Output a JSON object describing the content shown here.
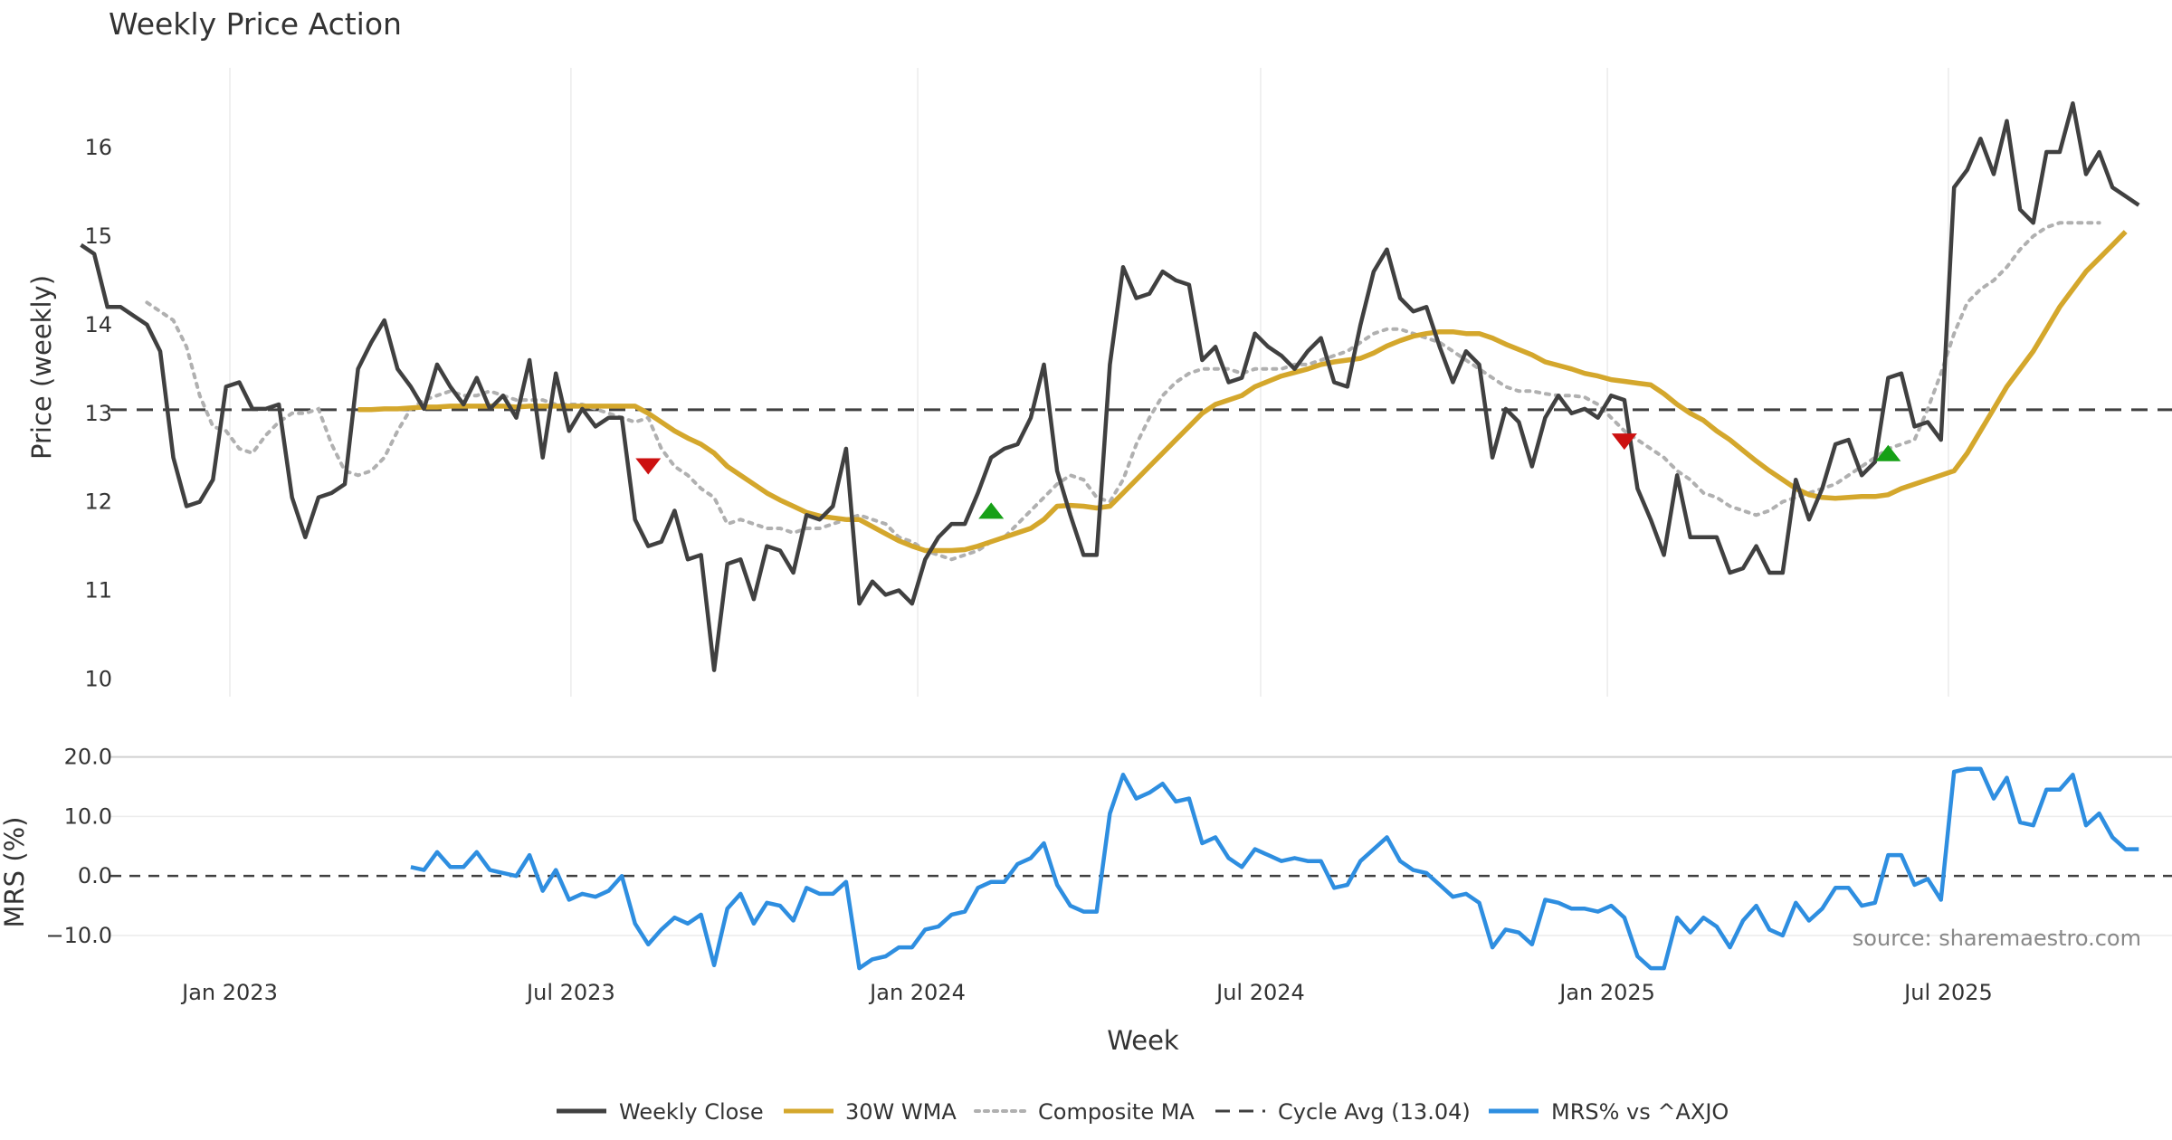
{
  "colors": {
    "close": "#404040",
    "wma": "#d4a72c",
    "composite": "#b0b0b0",
    "cycle": "#404040",
    "mrs": "#2e8ee0",
    "buy": "#16a016",
    "sell": "#cc1111",
    "grid": "#ececec"
  },
  "chart_data": [
    {
      "type": "line",
      "title": "Weekly Price Action",
      "ylabel": "Price (weekly)",
      "ylim": [
        9.8,
        16.9
      ],
      "yticks": [
        "10",
        "11",
        "12",
        "13",
        "14",
        "15",
        "16"
      ],
      "grid": "vertical",
      "x_start": "2022-10-14",
      "x_step_days": 7,
      "cycle_avg": 13.04,
      "series": [
        {
          "name": "Weekly Close",
          "style": "solid",
          "values": [
            14.9,
            14.8,
            14.2,
            14.2,
            14.1,
            14.0,
            13.7,
            12.5,
            11.95,
            12.0,
            12.25,
            13.3,
            13.35,
            13.05,
            13.05,
            13.1,
            12.05,
            11.6,
            12.05,
            12.1,
            12.2,
            13.5,
            13.8,
            14.05,
            13.5,
            13.3,
            13.05,
            13.55,
            13.3,
            13.1,
            13.4,
            13.05,
            13.2,
            12.95,
            13.6,
            12.5,
            13.45,
            12.8,
            13.05,
            12.85,
            12.95,
            12.95,
            11.8,
            11.5,
            11.55,
            11.9,
            11.35,
            11.4,
            10.1,
            11.3,
            11.35,
            10.9,
            11.5,
            11.45,
            11.2,
            11.85,
            11.8,
            11.95,
            12.6,
            10.85,
            11.1,
            10.95,
            11.0,
            10.85,
            11.35,
            11.6,
            11.75,
            11.75,
            12.1,
            12.5,
            12.6,
            12.65,
            12.95,
            13.55,
            12.35,
            11.85,
            11.4,
            11.4,
            13.55,
            14.65,
            14.3,
            14.35,
            14.6,
            14.5,
            14.45,
            13.6,
            13.75,
            13.35,
            13.4,
            13.9,
            13.75,
            13.65,
            13.5,
            13.7,
            13.85,
            13.35,
            13.3,
            14.0,
            14.6,
            14.85,
            14.3,
            14.15,
            14.2,
            13.75,
            13.35,
            13.7,
            13.55,
            12.5,
            13.05,
            12.9,
            12.4,
            12.95,
            13.2,
            13.0,
            13.05,
            12.95,
            13.2,
            13.15,
            12.15,
            11.8,
            11.4,
            12.3,
            11.6,
            11.6,
            11.6,
            11.2,
            11.25,
            11.5,
            11.2,
            11.2,
            12.25,
            11.8,
            12.15,
            12.65,
            12.7,
            12.3,
            12.45,
            13.4,
            13.45,
            12.85,
            12.9,
            12.7,
            15.55,
            15.75,
            16.1,
            15.7,
            16.3,
            15.3,
            15.15,
            15.95,
            15.95,
            16.5,
            15.7,
            15.95,
            15.55,
            15.45,
            15.35
          ]
        },
        {
          "name": "30W WMA",
          "style": "solid",
          "start_index": 21,
          "values": [
            13.04,
            13.04,
            13.05,
            13.05,
            13.06,
            13.07,
            13.07,
            13.08,
            13.08,
            13.08,
            13.08,
            13.08,
            13.07,
            13.08,
            13.08,
            13.08,
            13.08,
            13.08,
            13.08,
            13.08,
            13.08,
            13.08,
            13.0,
            12.9,
            12.8,
            12.72,
            12.65,
            12.55,
            12.4,
            12.3,
            12.2,
            12.1,
            12.02,
            11.95,
            11.88,
            11.84,
            11.82,
            11.8,
            11.8,
            11.72,
            11.64,
            11.56,
            11.5,
            11.45,
            11.45,
            11.45,
            11.46,
            11.5,
            11.55,
            11.6,
            11.65,
            11.7,
            11.8,
            11.95,
            11.96,
            11.95,
            11.93,
            11.95,
            12.1,
            12.25,
            12.4,
            12.55,
            12.7,
            12.85,
            13.0,
            13.1,
            13.15,
            13.2,
            13.3,
            13.36,
            13.42,
            13.46,
            13.5,
            13.55,
            13.58,
            13.6,
            13.62,
            13.68,
            13.76,
            13.82,
            13.87,
            13.9,
            13.92,
            13.92,
            13.9,
            13.9,
            13.85,
            13.78,
            13.72,
            13.66,
            13.58,
            13.54,
            13.5,
            13.45,
            13.42,
            13.38,
            13.36,
            13.34,
            13.32,
            13.22,
            13.1,
            13.0,
            12.92,
            12.8,
            12.7,
            12.58,
            12.46,
            12.35,
            12.25,
            12.15,
            12.08,
            12.05,
            12.04,
            12.05,
            12.06,
            12.06,
            12.08,
            12.15,
            12.2,
            12.25,
            12.3,
            12.35,
            12.55,
            12.8,
            13.05,
            13.3,
            13.5,
            13.7,
            13.95,
            14.2,
            14.4,
            14.6,
            14.75,
            14.9,
            15.05
          ]
        },
        {
          "name": "Composite MA",
          "style": "dotted",
          "start_index": 5,
          "values": [
            14.25,
            14.15,
            14.05,
            13.75,
            13.2,
            12.85,
            12.8,
            12.6,
            12.55,
            12.75,
            12.9,
            13.0,
            13.0,
            13.05,
            12.65,
            12.35,
            12.3,
            12.35,
            12.5,
            12.8,
            13.05,
            13.15,
            13.2,
            13.25,
            13.2,
            13.2,
            13.25,
            13.2,
            13.15,
            13.15,
            13.15,
            13.1,
            13.1,
            13.1,
            13.05,
            13.0,
            12.95,
            12.9,
            12.95,
            12.6,
            12.4,
            12.3,
            12.15,
            12.05,
            11.75,
            11.8,
            11.75,
            11.7,
            11.7,
            11.65,
            11.7,
            11.7,
            11.75,
            11.8,
            11.85,
            11.8,
            11.75,
            11.6,
            11.55,
            11.45,
            11.4,
            11.35,
            11.4,
            11.45,
            11.55,
            11.6,
            11.75,
            11.9,
            12.05,
            12.2,
            12.3,
            12.25,
            12.05,
            12.0,
            12.25,
            12.65,
            12.95,
            13.2,
            13.35,
            13.45,
            13.5,
            13.5,
            13.5,
            13.45,
            13.5,
            13.5,
            13.5,
            13.55,
            13.55,
            13.6,
            13.65,
            13.7,
            13.8,
            13.9,
            13.95,
            13.95,
            13.9,
            13.85,
            13.8,
            13.7,
            13.6,
            13.5,
            13.4,
            13.3,
            13.25,
            13.25,
            13.22,
            13.2,
            13.2,
            13.18,
            13.1,
            12.95,
            12.8,
            12.7,
            12.6,
            12.5,
            12.35,
            12.25,
            12.1,
            12.05,
            11.95,
            11.9,
            11.85,
            11.9,
            12.0,
            12.05,
            12.1,
            12.15,
            12.2,
            12.3,
            12.4,
            12.5,
            12.6,
            12.65,
            12.7,
            13.05,
            13.45,
            13.9,
            14.25,
            14.4,
            14.5,
            14.65,
            14.85,
            15.0,
            15.1,
            15.15,
            15.15,
            15.15,
            15.15
          ]
        },
        {
          "name": "Cycle Avg (13.04)",
          "style": "dashed",
          "value": 13.04
        }
      ],
      "signals": [
        {
          "type": "sell",
          "index": 43,
          "value": 12.4
        },
        {
          "type": "buy",
          "index": 69,
          "value": 11.9
        },
        {
          "type": "sell",
          "index": 117,
          "value": 12.68
        },
        {
          "type": "buy",
          "index": 137,
          "value": 12.55
        }
      ]
    },
    {
      "type": "line",
      "ylabel": "MRS (%)",
      "ylim": [
        -17,
        21
      ],
      "yticks": [
        "−10.0",
        "0.0",
        "10.0",
        "20.0"
      ],
      "xlabel": "Week",
      "xticks": [
        "Jan 2023",
        "Jul 2023",
        "Jan 2024",
        "Jul 2024",
        "Jan 2025",
        "Jul 2025"
      ],
      "xtick_dates": [
        "2023-01-01",
        "2023-07-01",
        "2024-01-01",
        "2024-07-01",
        "2025-01-01",
        "2025-07-01"
      ],
      "zero_line": 0,
      "series": [
        {
          "name": "MRS% vs ^AXJO",
          "style": "solid",
          "start_index": 25,
          "values": [
            1.5,
            1.0,
            4.0,
            1.5,
            1.5,
            4.0,
            1.0,
            0.5,
            0.0,
            3.5,
            -2.5,
            1.0,
            -4.0,
            -3.0,
            -3.5,
            -2.5,
            0.0,
            -8.0,
            -11.5,
            -9.0,
            -7.0,
            -8.0,
            -6.5,
            -15.0,
            -5.5,
            -3.0,
            -8.0,
            -4.5,
            -5.0,
            -7.5,
            -2.0,
            -3.0,
            -3.0,
            -1.0,
            -15.5,
            -14.0,
            -13.5,
            -12.0,
            -12.0,
            -9.0,
            -8.5,
            -6.5,
            -6.0,
            -2.0,
            -1.0,
            -1.0,
            2.0,
            3.0,
            5.5,
            -1.5,
            -5.0,
            -6.0,
            -6.0,
            10.5,
            17.0,
            13.0,
            14.0,
            15.5,
            12.5,
            13.0,
            5.5,
            6.5,
            3.0,
            1.5,
            4.5,
            3.5,
            2.5,
            3.0,
            2.5,
            2.5,
            -2.0,
            -1.5,
            2.5,
            4.5,
            6.5,
            2.5,
            1.0,
            0.5,
            -1.5,
            -3.5,
            -3.0,
            -4.5,
            -12.0,
            -9.0,
            -9.5,
            -11.5,
            -4.0,
            -4.5,
            -5.5,
            -5.5,
            -6.0,
            -5.0,
            -7.0,
            -13.5,
            -15.5,
            -15.5,
            -7.0,
            -9.5,
            -7.0,
            -8.5,
            -12.0,
            -7.5,
            -5.0,
            -9.0,
            -10.0,
            -4.5,
            -7.5,
            -5.5,
            -2.0,
            -2.0,
            -5.0,
            -4.5,
            3.5,
            3.5,
            -1.5,
            -0.5,
            -4.0,
            17.5,
            18.0,
            18.0,
            13.0,
            16.5,
            9.0,
            8.5,
            14.5,
            14.5,
            17.0,
            8.5,
            10.5,
            6.5,
            4.5,
            4.5
          ]
        }
      ]
    }
  ],
  "legend": {
    "placement": "bottom-center",
    "items": [
      {
        "name": "Weekly Close",
        "style": "solid",
        "color": "#404040"
      },
      {
        "name": "30W WMA",
        "style": "solid",
        "color": "#d4a72c"
      },
      {
        "name": "Composite MA",
        "style": "dotted",
        "color": "#b0b0b0"
      },
      {
        "name": "Cycle Avg (13.04)",
        "style": "dashed",
        "color": "#404040"
      },
      {
        "name": "MRS% vs ^AXJO",
        "style": "solid",
        "color": "#2e8ee0"
      }
    ]
  },
  "source": "source: sharemaestro.com"
}
